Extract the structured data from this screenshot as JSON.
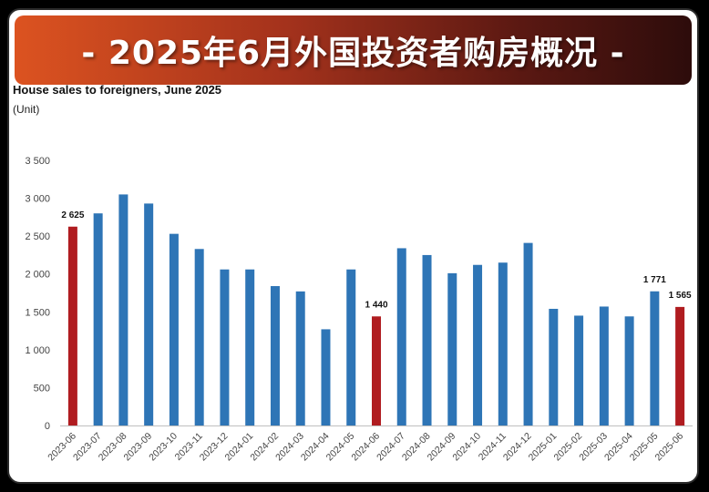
{
  "banner": {
    "title": "- 2025年6月外国投资者购房概况 -"
  },
  "chart_data": {
    "type": "bar",
    "title": "House sales to foreigners, June 2025",
    "unit_label": "(Unit)",
    "xlabel": "",
    "ylabel": "",
    "ylim": [
      0,
      3500
    ],
    "yticks": [
      0,
      500,
      1000,
      1500,
      2000,
      2500,
      3000,
      3500
    ],
    "ytick_labels": [
      "0",
      "500",
      "1 000",
      "1 500",
      "2 000",
      "2 500",
      "3 000",
      "3 500"
    ],
    "grid": false,
    "legend": "none",
    "categories": [
      "2023-06",
      "2023-07",
      "2023-08",
      "2023-09",
      "2023-10",
      "2023-11",
      "2023-12",
      "2024-01",
      "2024-02",
      "2024-03",
      "2024-04",
      "2024-05",
      "2024-06",
      "2024-07",
      "2024-08",
      "2024-09",
      "2024-10",
      "2024-11",
      "2024-12",
      "2025-01",
      "2025-02",
      "2025-03",
      "2025-04",
      "2025-05",
      "2025-06"
    ],
    "values": [
      2625,
      2800,
      3050,
      2930,
      2530,
      2330,
      2060,
      2060,
      1840,
      1770,
      1270,
      2060,
      1440,
      2340,
      2250,
      2010,
      2120,
      2150,
      2410,
      1540,
      1450,
      1570,
      1440,
      1771,
      1565
    ],
    "highlight_categories": [
      "2023-06",
      "2024-06",
      "2025-06"
    ],
    "data_labels": [
      {
        "category": "2023-06",
        "text": "2 625"
      },
      {
        "category": "2024-06",
        "text": "1 440"
      },
      {
        "category": "2025-05",
        "text": "1 771"
      },
      {
        "category": "2025-06",
        "text": "1 565"
      }
    ],
    "colors": {
      "bar": "#2e75b6",
      "highlight": "#b01c20"
    }
  }
}
